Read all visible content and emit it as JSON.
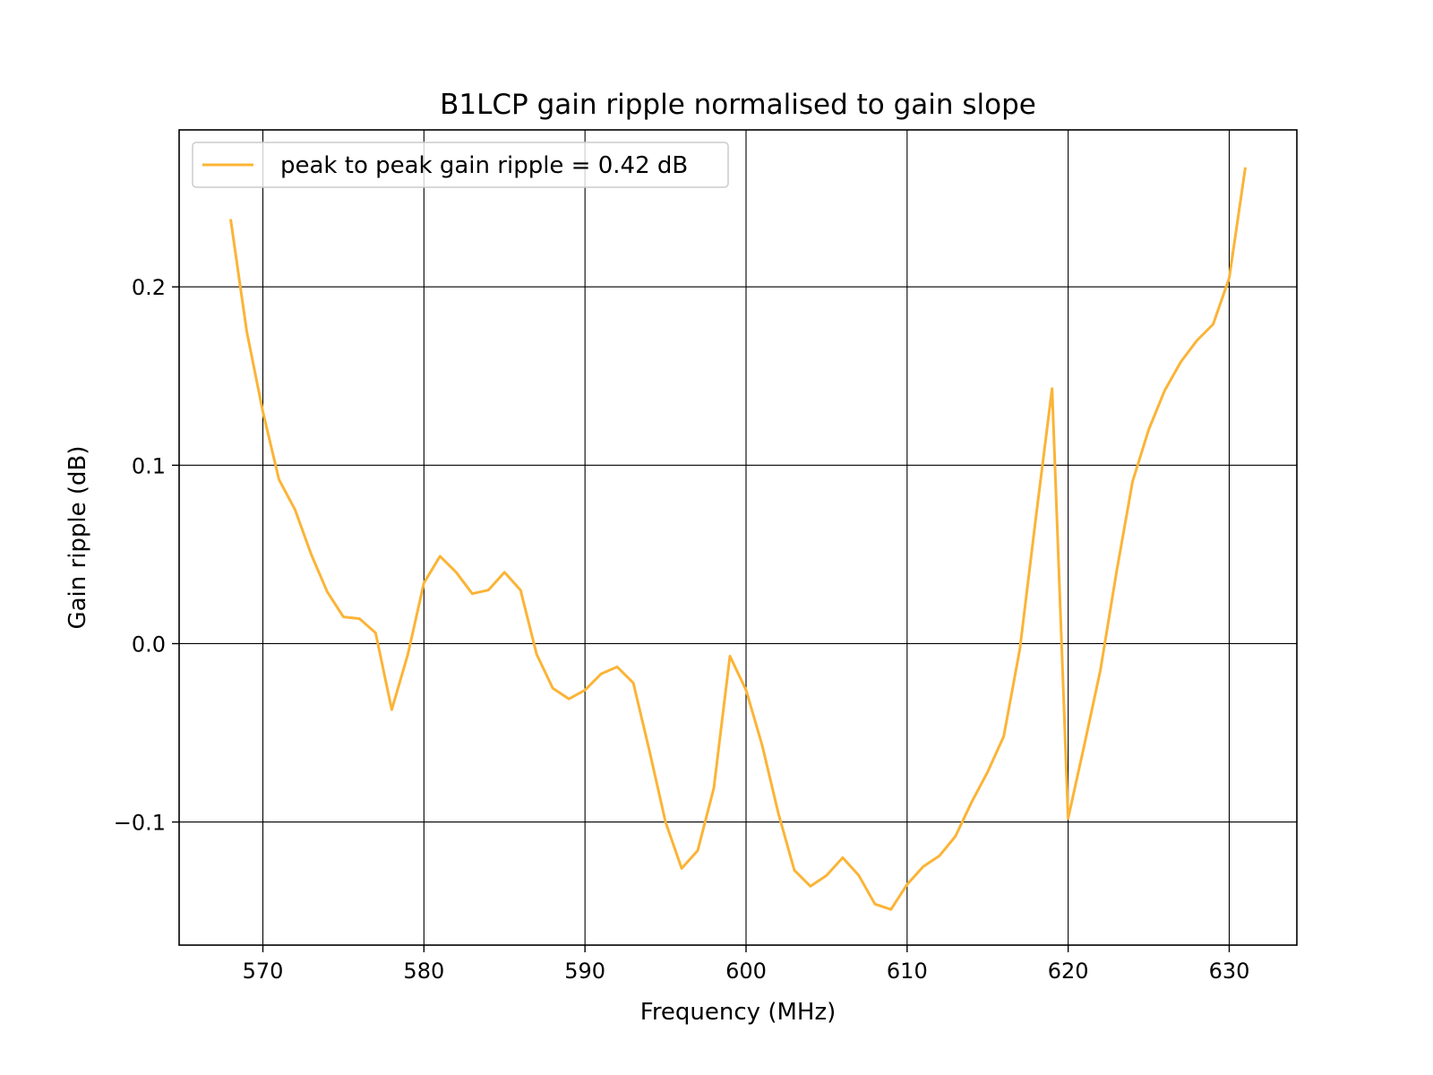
{
  "chart_data": {
    "type": "line",
    "title": "B1LCP gain ripple normalised to gain slope",
    "xlabel": "Frequency (MHz)",
    "ylabel": "Gain ripple (dB)",
    "xlim": [
      564.8,
      634.2
    ],
    "ylim": [
      -0.169,
      0.288
    ],
    "xticks": [
      570,
      580,
      590,
      600,
      610,
      620,
      630
    ],
    "xtick_labels": [
      "570",
      "580",
      "590",
      "600",
      "610",
      "620",
      "630"
    ],
    "yticks": [
      -0.1,
      0.0,
      0.1,
      0.2
    ],
    "ytick_labels": [
      "−0.1",
      "0.0",
      "0.1",
      "0.2"
    ],
    "grid": true,
    "legend_position": "top-left",
    "series": [
      {
        "name": "peak to peak gain ripple = 0.42 dB",
        "color": "#fbb437",
        "x": [
          568,
          569,
          570,
          571,
          572,
          573,
          574,
          575,
          576,
          577,
          578,
          579,
          580,
          581,
          582,
          583,
          584,
          585,
          586,
          587,
          588,
          589,
          590,
          591,
          592,
          593,
          594,
          595,
          596,
          597,
          598,
          599,
          600,
          601,
          602,
          603,
          604,
          605,
          606,
          607,
          608,
          609,
          610,
          611,
          612,
          613,
          614,
          615,
          616,
          617,
          618,
          619,
          620,
          621,
          622,
          623,
          624,
          625,
          626,
          627,
          628,
          629,
          630,
          631
        ],
        "y": [
          0.238,
          0.175,
          0.13,
          0.092,
          0.075,
          0.05,
          0.029,
          0.015,
          0.014,
          0.006,
          -0.037,
          -0.006,
          0.034,
          0.049,
          0.04,
          0.028,
          0.03,
          0.04,
          0.03,
          -0.006,
          -0.025,
          -0.031,
          -0.026,
          -0.017,
          -0.013,
          -0.022,
          -0.06,
          -0.1,
          -0.126,
          -0.116,
          -0.081,
          -0.007,
          -0.026,
          -0.057,
          -0.095,
          -0.127,
          -0.136,
          -0.13,
          -0.12,
          -0.13,
          -0.146,
          -0.149,
          -0.135,
          -0.125,
          -0.119,
          -0.108,
          -0.089,
          -0.072,
          -0.052,
          -0.003,
          0.071,
          0.143,
          -0.098,
          -0.057,
          -0.015,
          0.04,
          0.091,
          0.12,
          0.142,
          0.158,
          0.17,
          0.179,
          0.205,
          0.267
        ]
      }
    ]
  }
}
